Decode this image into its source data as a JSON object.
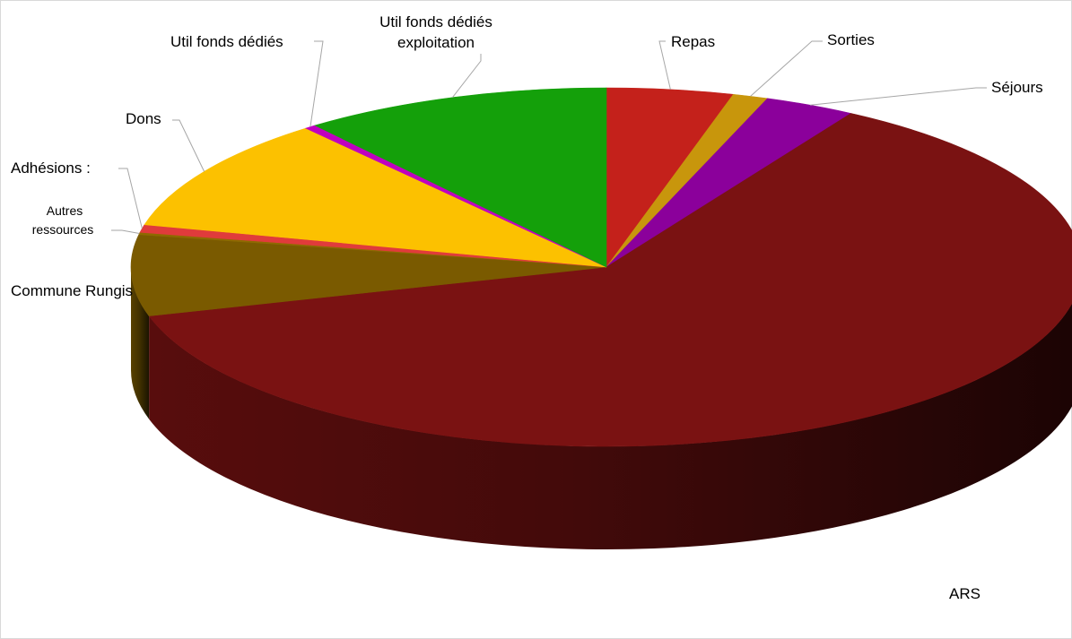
{
  "chart_data": {
    "type": "pie",
    "style": "3d",
    "legend": "none",
    "slices": [
      {
        "label": "Repas",
        "value": 4.3,
        "color": "#C4211B"
      },
      {
        "label": "Sorties",
        "value": 1.2,
        "color": "#C8960C"
      },
      {
        "label": "Séjours",
        "value": 3.1,
        "color": "#8B009B"
      },
      {
        "label": "ARS",
        "value": 62.0,
        "color": "#7A1212"
      },
      {
        "label": "Commune Rungis",
        "value": 7.3,
        "color": "#7A5A00"
      },
      {
        "label": "Autres ressources",
        "value": 0.2,
        "color": "#8E6A00"
      },
      {
        "label": "Adhésions :",
        "value": 0.7,
        "color": "#E03B3B"
      },
      {
        "label": "Dons",
        "value": 10.3,
        "color": "#FCC100"
      },
      {
        "label": "Util fonds dédiés",
        "value": 0.4,
        "color": "#C000C0"
      },
      {
        "label": "Util fonds dédiés exploitation",
        "value": 10.5,
        "color": "#14A00A"
      }
    ]
  }
}
